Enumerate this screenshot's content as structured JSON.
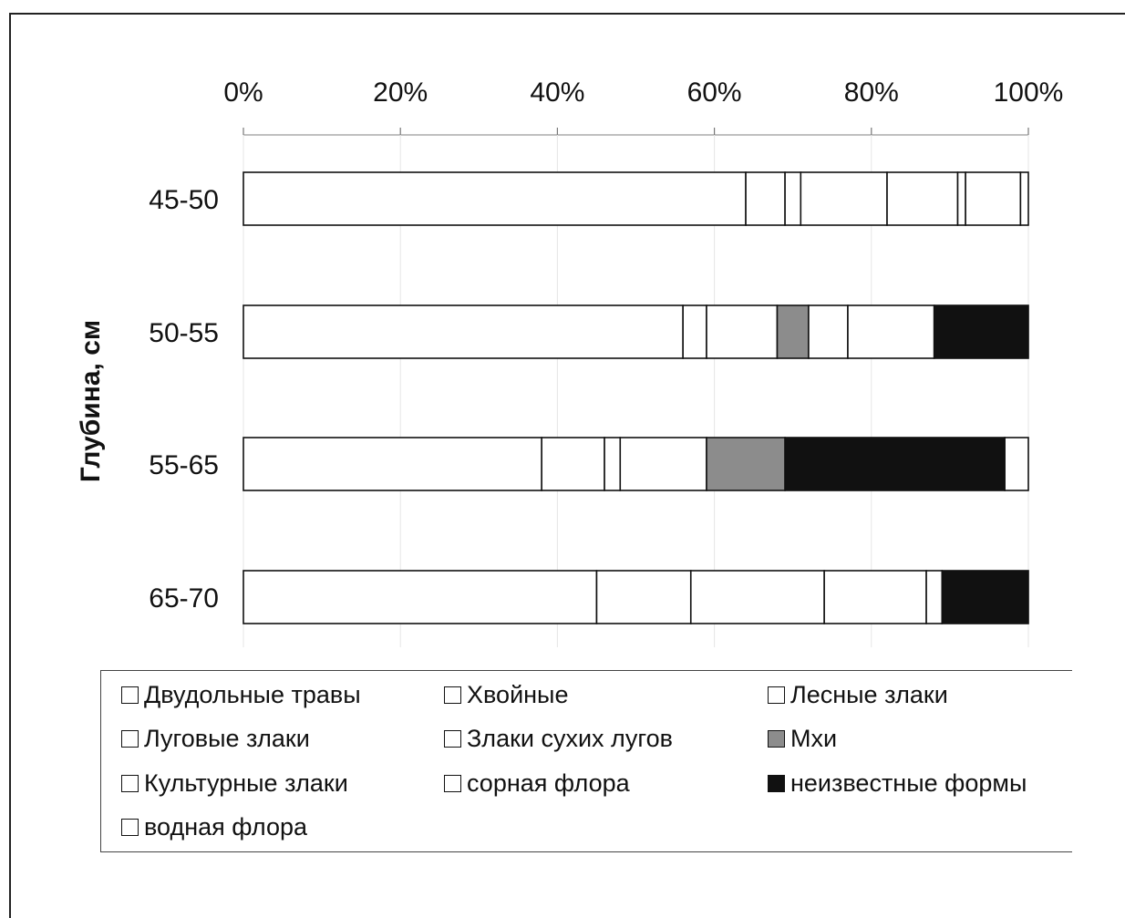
{
  "chart_data": {
    "type": "bar",
    "orientation": "horizontal",
    "stacked": "percent",
    "ylabel": "Глубина, см",
    "xlim": [
      0,
      100
    ],
    "x_ticks": [
      "0%",
      "20%",
      "40%",
      "60%",
      "80%",
      "100%"
    ],
    "categories": [
      "45-50",
      "50-55",
      "55-65",
      "65-70"
    ],
    "series": [
      {
        "name": "Двудольные травы",
        "color": "#ffffff",
        "values": [
          64,
          56,
          38,
          45
        ]
      },
      {
        "name": "Хвойные",
        "color": "#ffffff",
        "values": [
          5,
          3,
          8,
          12
        ]
      },
      {
        "name": "Лесные злаки",
        "color": "#ffffff",
        "values": [
          2,
          9,
          2,
          0
        ]
      },
      {
        "name": "Луговые злаки",
        "color": "#ffffff",
        "values": [
          11,
          0,
          11,
          17
        ]
      },
      {
        "name": "Злаки сухих лугов",
        "color": "#ffffff",
        "values": [
          9,
          0,
          0,
          0
        ]
      },
      {
        "name": "Мхи",
        "color": "#8c8c8c",
        "values": [
          0,
          4,
          10,
          0
        ]
      },
      {
        "name": "Культурные злаки",
        "color": "#ffffff",
        "values": [
          1,
          5,
          0,
          13
        ]
      },
      {
        "name": "сорная флора",
        "color": "#ffffff",
        "values": [
          7,
          11,
          0,
          2
        ]
      },
      {
        "name": "неизвестные формы",
        "color": "#111111",
        "values": [
          0,
          12,
          28,
          11
        ]
      },
      {
        "name": "водная флора",
        "color": "#ffffff",
        "values": [
          1,
          0,
          3,
          0
        ]
      }
    ],
    "grid": "vertical",
    "legend_position": "bottom"
  }
}
